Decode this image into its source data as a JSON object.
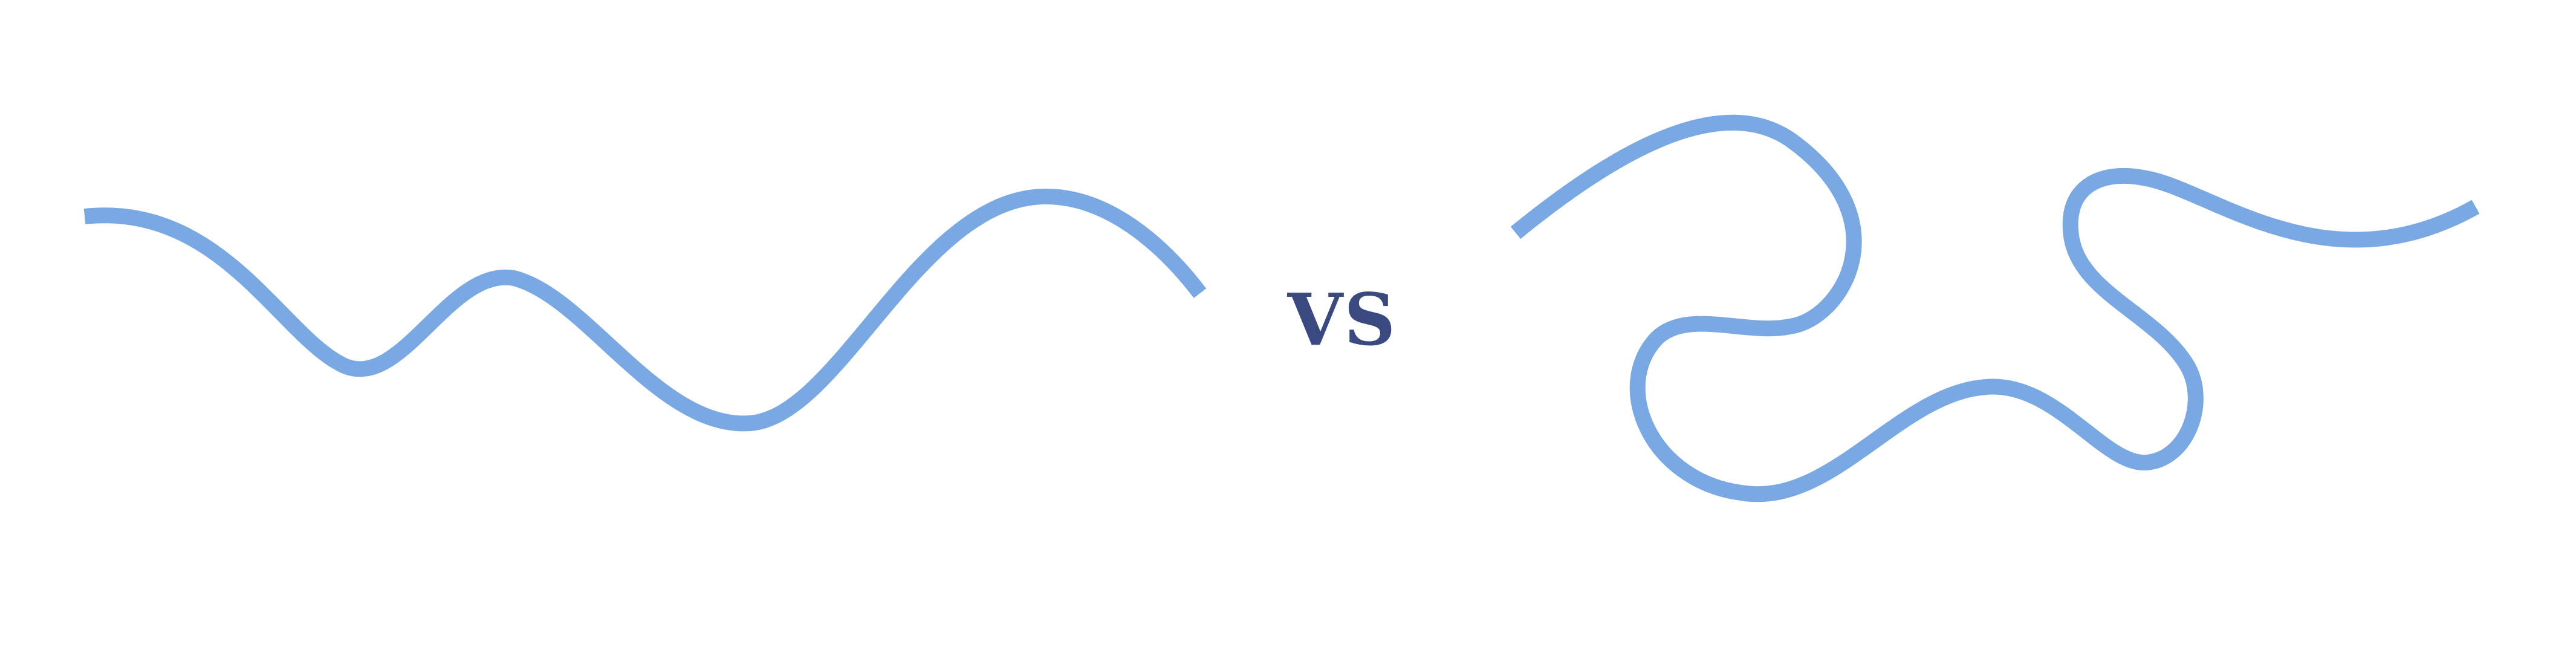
{
  "comparison": {
    "label": "VS"
  },
  "curves": [
    {
      "name": "gentle-wavy-line",
      "shape": "smooth sinusoidal wave"
    },
    {
      "name": "winding-looped-line",
      "shape": "tortuous winding path"
    }
  ],
  "colors": {
    "curve_stroke": "#7aa8e2",
    "label_text": "#3a4a80",
    "background": "#ffffff"
  }
}
